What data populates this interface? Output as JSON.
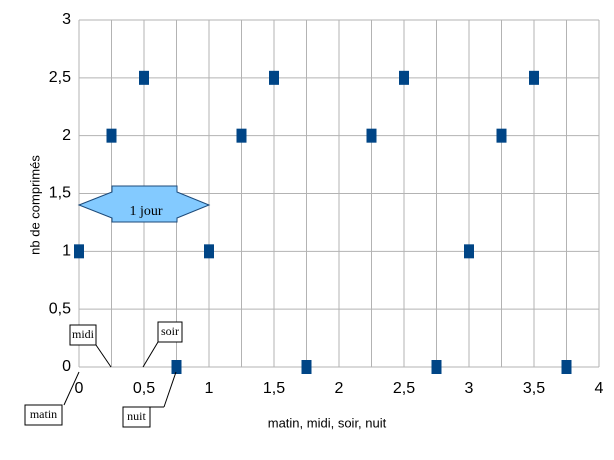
{
  "chart_data": {
    "type": "scatter",
    "y_label": "nb de comprimés",
    "x_label": "matin, midi, soir, nuit",
    "x": [
      0,
      0.25,
      0.5,
      0.75,
      1,
      1.25,
      1.5,
      1.75,
      2.25,
      2.5,
      2.75,
      3,
      3.25,
      3.5,
      3.75
    ],
    "values": [
      1,
      2,
      2.5,
      0,
      1,
      2,
      2.5,
      0,
      2,
      2.5,
      0,
      1,
      2,
      2.5,
      0
    ],
    "color": "#004586",
    "xlim": [
      0,
      4
    ],
    "ylim": [
      0,
      3
    ],
    "xticks": [
      0,
      {
        "value": 0.5,
        "label": "0,5"
      },
      1,
      {
        "value": 1.5,
        "label": "1,5"
      },
      2,
      {
        "value": 2.5,
        "label": "2,5"
      },
      3,
      {
        "value": 3.5,
        "label": "3,5"
      },
      4
    ],
    "xminorticks": [
      0.25,
      0.75,
      1.25,
      1.75,
      2.25,
      2.75,
      3.25,
      3.75
    ],
    "yticks": [
      0,
      {
        "value": 0.5,
        "label": "0,5"
      },
      1,
      {
        "value": 1.5,
        "label": "1,5"
      },
      2,
      {
        "value": 2.5,
        "label": "2,5"
      },
      3
    ],
    "grid": true,
    "annotations": [
      "1 jour",
      "midi",
      "soir",
      "matin",
      "nuit"
    ]
  }
}
